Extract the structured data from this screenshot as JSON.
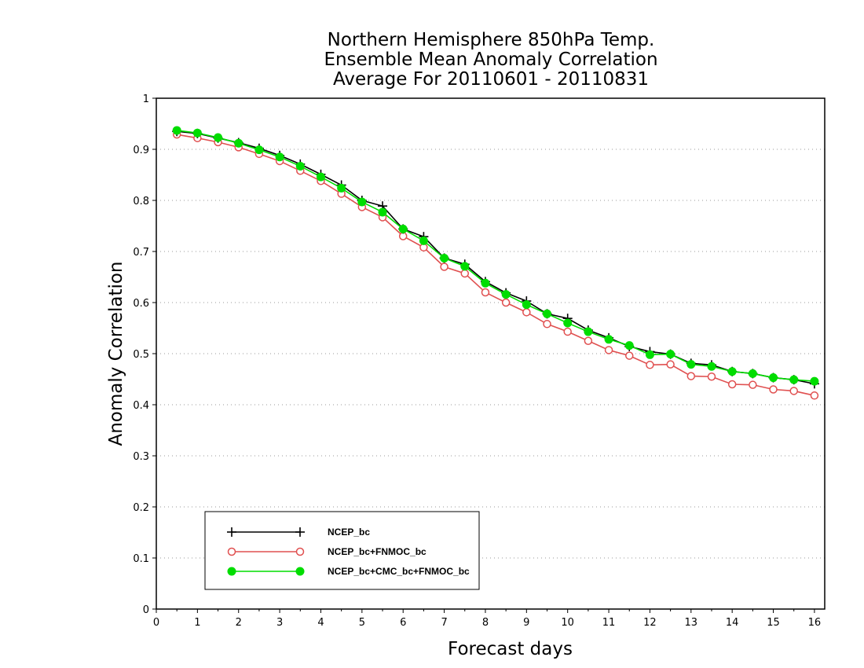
{
  "chart_data": {
    "type": "line",
    "title": [
      "Northern Hemisphere 850hPa Temp.",
      "Ensemble Mean Anomaly Correlation",
      "Average For 20110601 - 20110831"
    ],
    "xlabel": "Forecast days",
    "ylabel": "Anomaly Correlation",
    "xlim": [
      0,
      16.25
    ],
    "ylim": [
      0,
      1
    ],
    "xticks": [
      0,
      1,
      2,
      3,
      4,
      5,
      6,
      7,
      8,
      9,
      10,
      11,
      12,
      13,
      14,
      15,
      16
    ],
    "yticks": [
      0,
      0.1,
      0.2,
      0.3,
      0.4,
      0.5,
      0.6,
      0.7,
      0.8,
      0.9,
      1
    ],
    "grid": "horizontal dotted",
    "legend_position": "bottom-left",
    "x": [
      0.5,
      1,
      1.5,
      2,
      2.5,
      3,
      3.5,
      4,
      4.5,
      5,
      5.5,
      6,
      6.5,
      7,
      7.5,
      8,
      8.5,
      9,
      9.5,
      10,
      10.5,
      11,
      11.5,
      12,
      12.5,
      13,
      13.5,
      14,
      14.5,
      15,
      15.5,
      16
    ],
    "series": [
      {
        "name": "NCEP_bc",
        "color": "#000000",
        "marker": "plus",
        "values": [
          0.935,
          0.931,
          0.922,
          0.913,
          0.902,
          0.888,
          0.871,
          0.851,
          0.83,
          0.8,
          0.789,
          0.744,
          0.729,
          0.687,
          0.675,
          0.641,
          0.619,
          0.603,
          0.578,
          0.569,
          0.546,
          0.531,
          0.514,
          0.504,
          0.499,
          0.481,
          0.478,
          0.465,
          0.461,
          0.453,
          0.449,
          0.441
        ]
      },
      {
        "name": "NCEP_bc+FNMOC_bc",
        "color": "#e05050",
        "marker": "open-circle",
        "values": [
          0.929,
          0.922,
          0.914,
          0.904,
          0.891,
          0.877,
          0.858,
          0.838,
          0.813,
          0.787,
          0.767,
          0.73,
          0.708,
          0.67,
          0.657,
          0.62,
          0.6,
          0.581,
          0.558,
          0.543,
          0.525,
          0.507,
          0.496,
          0.478,
          0.479,
          0.456,
          0.455,
          0.44,
          0.439,
          0.43,
          0.427,
          0.418
        ]
      },
      {
        "name": "NCEP_bc+CMC_bc+FNMOC_bc",
        "color": "#00dd00",
        "marker": "filled-circle",
        "values": [
          0.937,
          0.932,
          0.923,
          0.912,
          0.899,
          0.885,
          0.867,
          0.846,
          0.824,
          0.797,
          0.777,
          0.744,
          0.721,
          0.687,
          0.671,
          0.638,
          0.616,
          0.596,
          0.578,
          0.56,
          0.543,
          0.528,
          0.516,
          0.498,
          0.499,
          0.479,
          0.475,
          0.465,
          0.461,
          0.453,
          0.449,
          0.446
        ]
      }
    ]
  }
}
